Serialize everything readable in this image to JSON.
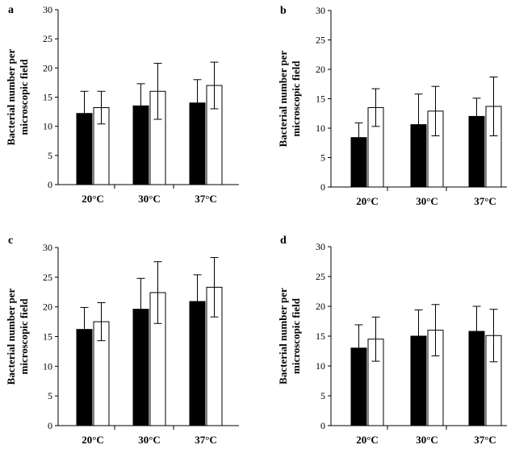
{
  "chart_data": [
    {
      "type": "bar",
      "panel": "a",
      "categories": [
        "20°C",
        "30°C",
        "37°C"
      ],
      "ylabel": [
        "Bacterial number per",
        "microscopic field"
      ],
      "ylim": [
        0,
        30
      ],
      "yticks": [
        0,
        5,
        10,
        15,
        20,
        25,
        30
      ],
      "series": [
        {
          "name": "filled",
          "color": "#000000",
          "values": [
            12.2,
            13.5,
            14.0
          ],
          "errors": [
            3.8,
            3.8,
            4.0
          ]
        },
        {
          "name": "open",
          "color": "#ffffff",
          "values": [
            13.2,
            16.0,
            17.0
          ],
          "errors": [
            2.8,
            4.8,
            4.0
          ]
        }
      ]
    },
    {
      "type": "bar",
      "panel": "b",
      "categories": [
        "20°C",
        "30°C",
        "37°C"
      ],
      "ylabel": [
        "Bacterial number per",
        "microscopic field"
      ],
      "ylim": [
        0,
        30
      ],
      "yticks": [
        0,
        5,
        10,
        15,
        20,
        25,
        30
      ],
      "series": [
        {
          "name": "filled",
          "color": "#000000",
          "values": [
            8.4,
            10.6,
            12.0
          ],
          "errors": [
            2.5,
            5.2,
            3.1
          ]
        },
        {
          "name": "open",
          "color": "#ffffff",
          "values": [
            13.5,
            12.9,
            13.7
          ],
          "errors": [
            3.2,
            4.2,
            5.0
          ]
        }
      ]
    },
    {
      "type": "bar",
      "panel": "c",
      "categories": [
        "20°C",
        "30°C",
        "37°C"
      ],
      "ylabel": [
        "Bacterial number per",
        "microscopic field"
      ],
      "ylim": [
        0,
        30
      ],
      "yticks": [
        0,
        5,
        10,
        15,
        20,
        25,
        30
      ],
      "series": [
        {
          "name": "filled",
          "color": "#000000",
          "values": [
            16.2,
            19.6,
            20.9
          ],
          "errors": [
            3.7,
            5.2,
            4.5
          ]
        },
        {
          "name": "open",
          "color": "#ffffff",
          "values": [
            17.5,
            22.4,
            23.3
          ],
          "errors": [
            3.2,
            5.2,
            5.0
          ]
        }
      ]
    },
    {
      "type": "bar",
      "panel": "d",
      "categories": [
        "20°C",
        "30°C",
        "37°C"
      ],
      "ylabel": [
        "Bacterial number per",
        "microscopic field"
      ],
      "ylim": [
        0,
        30
      ],
      "yticks": [
        0,
        5,
        10,
        15,
        20,
        25,
        30
      ],
      "series": [
        {
          "name": "filled",
          "color": "#000000",
          "values": [
            13.0,
            15.0,
            15.8
          ],
          "errors": [
            3.9,
            4.4,
            4.2
          ]
        },
        {
          "name": "open",
          "color": "#ffffff",
          "values": [
            14.5,
            16.0,
            15.1
          ],
          "errors": [
            3.7,
            4.3,
            4.4
          ]
        }
      ]
    }
  ]
}
